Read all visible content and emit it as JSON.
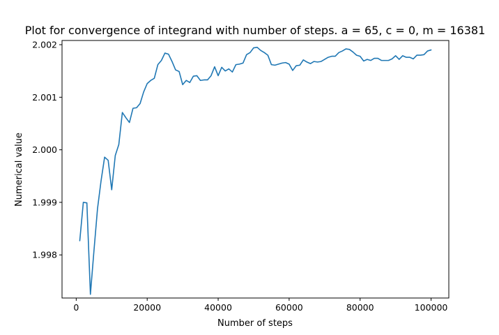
{
  "chart_data": {
    "type": "line",
    "title": "Plot for convergence of integrand with number of steps. a = 65, c = 0, m = 16381",
    "xlabel": "Number of steps",
    "ylabel": "Numerical value",
    "xlim": [
      -4000,
      105000
    ],
    "ylim": [
      1.99718,
      2.00208
    ],
    "xticks": [
      0,
      20000,
      40000,
      60000,
      80000,
      100000
    ],
    "xtick_labels": [
      "0",
      "20000",
      "40000",
      "60000",
      "80000",
      "100000"
    ],
    "yticks": [
      1.998,
      1.999,
      2.0,
      2.001,
      2.002
    ],
    "ytick_labels": [
      "1.998",
      "1.999",
      "2.000",
      "2.001",
      "2.002"
    ],
    "grid": false,
    "legend": "none",
    "series": [
      {
        "color": "#1f77b4",
        "x": [
          1000,
          2000,
          3000,
          4000,
          5000,
          6000,
          7000,
          8000,
          9000,
          10000,
          11000,
          12000,
          13000,
          14000,
          15000,
          16000,
          17000,
          18000,
          19000,
          20000,
          21000,
          22000,
          23000,
          24000,
          25000,
          26000,
          27000,
          28000,
          29000,
          30000,
          31000,
          32000,
          33000,
          34000,
          35000,
          36000,
          37000,
          38000,
          39000,
          40000,
          41000,
          42000,
          43000,
          44000,
          45000,
          46000,
          47000,
          48000,
          49000,
          50000,
          51000,
          52000,
          53000,
          54000,
          55000,
          56000,
          57000,
          58000,
          59000,
          60000,
          61000,
          62000,
          63000,
          64000,
          65000,
          66000,
          67000,
          68000,
          69000,
          70000,
          71000,
          72000,
          73000,
          74000,
          75000,
          76000,
          77000,
          78000,
          79000,
          80000,
          81000,
          82000,
          83000,
          84000,
          85000,
          86000,
          87000,
          88000,
          89000,
          90000,
          91000,
          92000,
          93000,
          94000,
          95000,
          96000,
          97000,
          98000,
          99000,
          100000
        ],
        "y": [
          1.99827,
          1.999,
          1.99899,
          1.99725,
          1.99808,
          1.99888,
          1.99941,
          1.99986,
          1.9998,
          1.99924,
          1.99989,
          2.0001,
          2.00071,
          2.00061,
          2.00052,
          2.00079,
          2.0008,
          2.00088,
          2.0011,
          2.00126,
          2.00132,
          2.00136,
          2.00162,
          2.0017,
          2.00184,
          2.00182,
          2.00168,
          2.00152,
          2.00149,
          2.00124,
          2.00132,
          2.00128,
          2.0014,
          2.00141,
          2.00132,
          2.00133,
          2.00133,
          2.00141,
          2.00158,
          2.00141,
          2.00157,
          2.0015,
          2.00154,
          2.00148,
          2.00162,
          2.00163,
          2.00165,
          2.00181,
          2.00185,
          2.00194,
          2.00195,
          2.00189,
          2.00185,
          2.0018,
          2.00162,
          2.00161,
          2.00163,
          2.00165,
          2.00166,
          2.00163,
          2.00151,
          2.0016,
          2.00161,
          2.00171,
          2.00167,
          2.00164,
          2.00168,
          2.00167,
          2.00168,
          2.00172,
          2.00176,
          2.00178,
          2.00178,
          2.00185,
          2.00188,
          2.00192,
          2.00191,
          2.00186,
          2.0018,
          2.00178,
          2.00169,
          2.00172,
          2.0017,
          2.00174,
          2.00174,
          2.0017,
          2.0017,
          2.0017,
          2.00173,
          2.00179,
          2.00172,
          2.00179,
          2.00176,
          2.00176,
          2.00173,
          2.0018,
          2.0018,
          2.00181,
          2.00188,
          2.0019
        ]
      }
    ]
  }
}
